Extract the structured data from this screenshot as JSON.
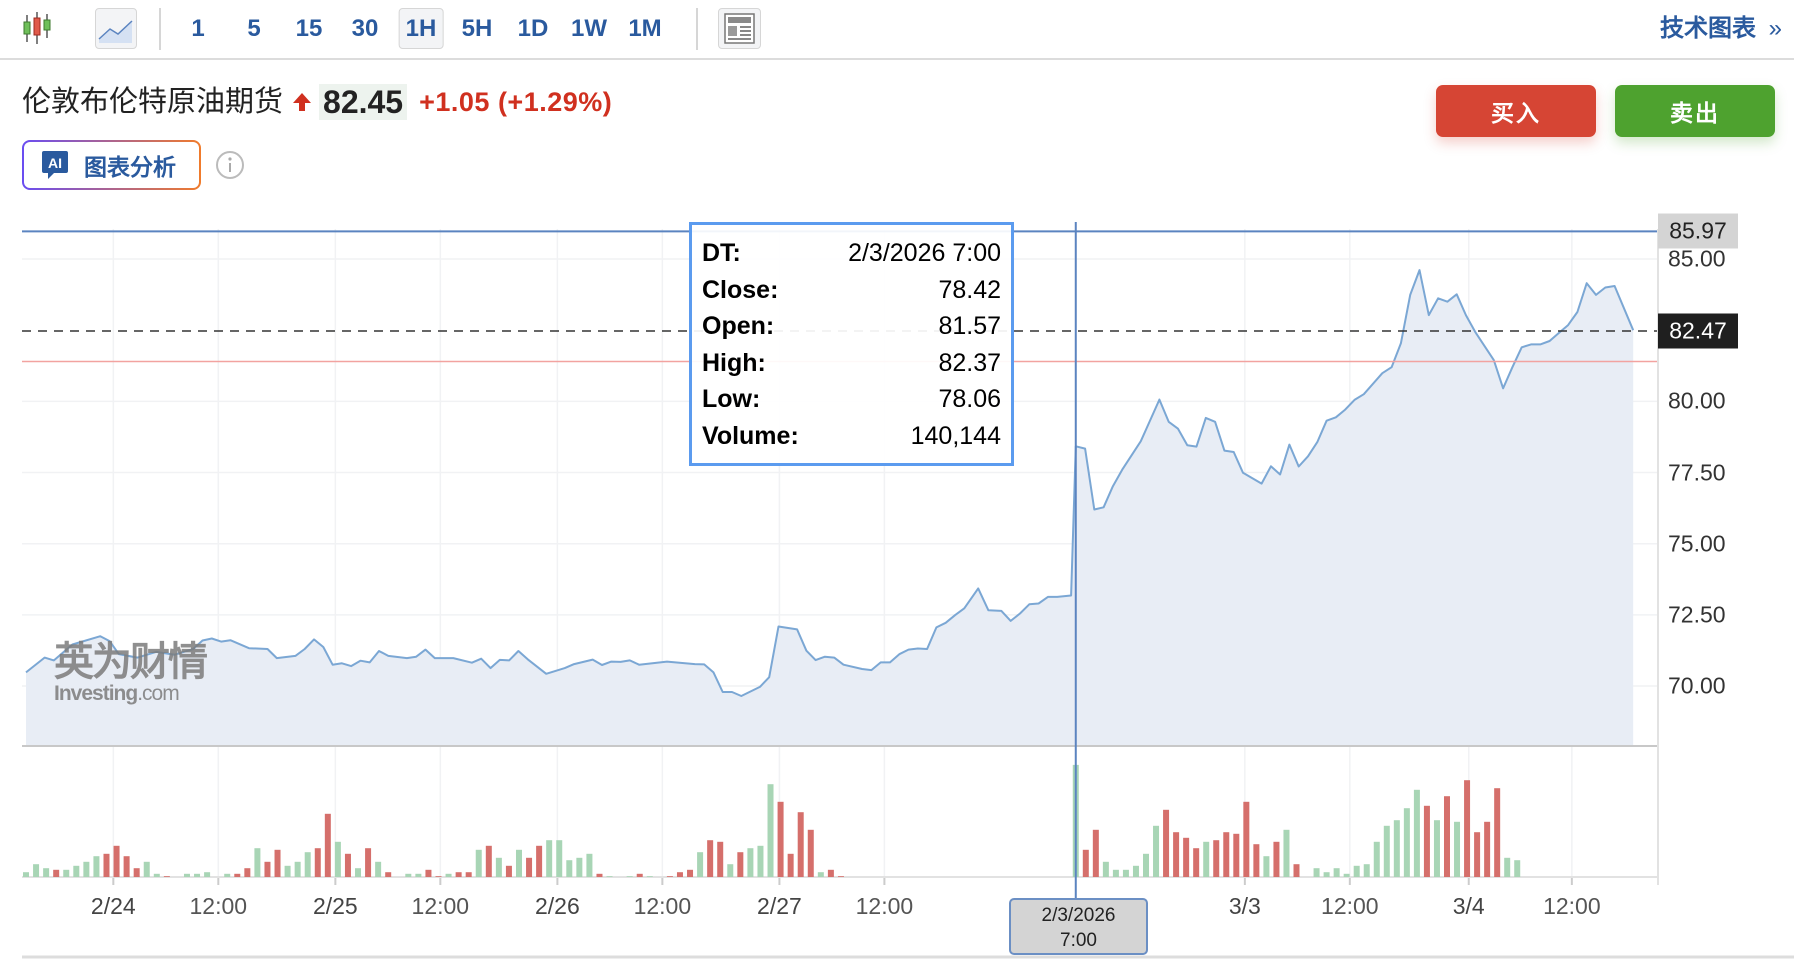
{
  "toolbar": {
    "intervals": [
      "1",
      "5",
      "15",
      "30",
      "1H",
      "5H",
      "1D",
      "1W",
      "1M"
    ],
    "selected_interval": "1H",
    "tech_chart_label": "技术图表",
    "tech_chart_arrow": "»",
    "icons": [
      "candlestick-chart-icon",
      "area-chart-icon",
      "layout-icon"
    ]
  },
  "header": {
    "instrument": "伦敦布伦特原油期货",
    "price": "82.45",
    "change": "+1.05",
    "change_pct": "(+1.29%)",
    "direction": "up"
  },
  "ai_button": {
    "badge": "AI",
    "label": "图表分析"
  },
  "actions": {
    "buy": "买入",
    "sell": "卖出"
  },
  "colors": {
    "accent": "#2a5a9e",
    "up": "#d0301f",
    "buy": "#d64534",
    "sell": "#4ea22f",
    "line": "#7ba7d4",
    "area": "#e8edf5",
    "vol_up": "#a8d5b5",
    "vol_down": "#d56f6b"
  },
  "watermark": {
    "cn": "英为财情",
    "en": "Investing",
    "en_suffix": ".com"
  },
  "tooltip": {
    "rows": [
      {
        "k": "DT:",
        "v": "2/3/2026 7:00"
      },
      {
        "k": "Close:",
        "v": "78.42"
      },
      {
        "k": "Open:",
        "v": "81.57"
      },
      {
        "k": "High:",
        "v": "82.37"
      },
      {
        "k": "Low:",
        "v": "78.06"
      },
      {
        "k": "Volume:",
        "v": "140,144"
      }
    ]
  },
  "crosshair": {
    "date": "2/3/2026",
    "time": "7:00",
    "h": 113
  },
  "chart_data": {
    "type": "area",
    "title": "伦敦布伦特原油期货 1H",
    "y_ticks": [
      "70.00",
      "72.50",
      "75.00",
      "77.50",
      "80.00",
      "85.00"
    ],
    "y_tick_values": [
      70,
      72.5,
      75,
      77.5,
      80,
      85
    ],
    "ylim": [
      67.9,
      86
    ],
    "grid": true,
    "price_tags": [
      {
        "label": "85.97",
        "value": 85.97,
        "kind": "high"
      },
      {
        "label": "82.47",
        "value": 82.47,
        "kind": "last"
      }
    ],
    "prev_close": 81.4,
    "x_ticks": [
      {
        "label": "2/24",
        "h": 9.4,
        "kind": "date"
      },
      {
        "label": "12:00",
        "h": 20.7,
        "kind": "time"
      },
      {
        "label": "2/25",
        "h": 33.3,
        "kind": "date"
      },
      {
        "label": "12:00",
        "h": 44.6,
        "kind": "time"
      },
      {
        "label": "2/26",
        "h": 57.2,
        "kind": "date"
      },
      {
        "label": "12:00",
        "h": 68.5,
        "kind": "time"
      },
      {
        "label": "2/27",
        "h": 81.1,
        "kind": "date"
      },
      {
        "label": "12:00",
        "h": 92.4,
        "kind": "time"
      },
      {
        "label": "3/3",
        "h": 131.2,
        "kind": "date"
      },
      {
        "label": "12:00",
        "h": 142.5,
        "kind": "time"
      },
      {
        "label": "3/4",
        "h": 155.3,
        "kind": "date"
      },
      {
        "label": "12:00",
        "h": 166.4,
        "kind": "time"
      }
    ],
    "series": [
      [
        0,
        70.48
      ],
      [
        2,
        71.0
      ],
      [
        3,
        70.9
      ],
      [
        5,
        71.46
      ],
      [
        8,
        71.75
      ],
      [
        9,
        71.58
      ],
      [
        10,
        71.12
      ],
      [
        12,
        71.0
      ],
      [
        14,
        71.2
      ],
      [
        16,
        71.1
      ],
      [
        18,
        71.3
      ],
      [
        19,
        71.6
      ],
      [
        20,
        71.67
      ],
      [
        21,
        71.56
      ],
      [
        22,
        71.61
      ],
      [
        24,
        71.33
      ],
      [
        26,
        71.3
      ],
      [
        27,
        70.98
      ],
      [
        29,
        71.06
      ],
      [
        30,
        71.3
      ],
      [
        31,
        71.64
      ],
      [
        32,
        71.37
      ],
      [
        33,
        70.75
      ],
      [
        34,
        70.8
      ],
      [
        35,
        70.7
      ],
      [
        36,
        70.89
      ],
      [
        37,
        70.83
      ],
      [
        38,
        71.23
      ],
      [
        39,
        71.06
      ],
      [
        41,
        70.98
      ],
      [
        42,
        71.03
      ],
      [
        43,
        71.28
      ],
      [
        44,
        70.98
      ],
      [
        46,
        70.98
      ],
      [
        48,
        70.82
      ],
      [
        49,
        70.96
      ],
      [
        50,
        70.63
      ],
      [
        51,
        70.92
      ],
      [
        52,
        70.9
      ],
      [
        53,
        71.23
      ],
      [
        54,
        70.94
      ],
      [
        56,
        70.43
      ],
      [
        58,
        70.63
      ],
      [
        59,
        70.77
      ],
      [
        61,
        70.93
      ],
      [
        62,
        70.74
      ],
      [
        63,
        70.86
      ],
      [
        64,
        70.85
      ],
      [
        65,
        70.9
      ],
      [
        66,
        70.75
      ],
      [
        69,
        70.86
      ],
      [
        72,
        70.77
      ],
      [
        73,
        70.76
      ],
      [
        74,
        70.48
      ],
      [
        75,
        69.79
      ],
      [
        76,
        69.79
      ],
      [
        77,
        69.65
      ],
      [
        79,
        69.97
      ],
      [
        80,
        70.31
      ],
      [
        81,
        72.09
      ],
      [
        83,
        71.99
      ],
      [
        84,
        71.24
      ],
      [
        85,
        70.91
      ],
      [
        86,
        71.03
      ],
      [
        87,
        71.0
      ],
      [
        88,
        70.75
      ],
      [
        90,
        70.6
      ],
      [
        91,
        70.56
      ],
      [
        92,
        70.83
      ],
      [
        93,
        70.83
      ],
      [
        94,
        71.12
      ],
      [
        95,
        71.28
      ],
      [
        96,
        71.32
      ],
      [
        97,
        71.3
      ],
      [
        98,
        72.06
      ],
      [
        99,
        72.22
      ],
      [
        100,
        72.49
      ],
      [
        101,
        72.73
      ],
      [
        102.5,
        73.43
      ],
      [
        103.6,
        72.66
      ],
      [
        105,
        72.64
      ],
      [
        106,
        72.29
      ],
      [
        107,
        72.55
      ],
      [
        108,
        72.87
      ],
      [
        109,
        72.9
      ],
      [
        110,
        73.13
      ],
      [
        111,
        73.13
      ],
      [
        112.5,
        73.18
      ],
      [
        113,
        78.42
      ],
      [
        114,
        78.34
      ],
      [
        115,
        76.2
      ],
      [
        116,
        76.28
      ],
      [
        117,
        77.02
      ],
      [
        118,
        77.6
      ],
      [
        119,
        78.1
      ],
      [
        120,
        78.6
      ],
      [
        122,
        80.06
      ],
      [
        123,
        79.28
      ],
      [
        124,
        79.04
      ],
      [
        125,
        78.46
      ],
      [
        126,
        78.41
      ],
      [
        127,
        79.42
      ],
      [
        128,
        79.28
      ],
      [
        129,
        78.27
      ],
      [
        130,
        78.22
      ],
      [
        131,
        77.49
      ],
      [
        133,
        77.11
      ],
      [
        134,
        77.72
      ],
      [
        135,
        77.43
      ],
      [
        136,
        78.48
      ],
      [
        137,
        77.71
      ],
      [
        138,
        78.07
      ],
      [
        139,
        78.57
      ],
      [
        140,
        79.32
      ],
      [
        141,
        79.44
      ],
      [
        142,
        79.71
      ],
      [
        143,
        80.05
      ],
      [
        144,
        80.25
      ],
      [
        146,
        80.99
      ],
      [
        147,
        81.2
      ],
      [
        148,
        82.04
      ],
      [
        149,
        83.74
      ],
      [
        150,
        84.61
      ],
      [
        151,
        83.03
      ],
      [
        152,
        83.62
      ],
      [
        153,
        83.5
      ],
      [
        154,
        83.76
      ],
      [
        155,
        83.03
      ],
      [
        156,
        82.44
      ],
      [
        158,
        81.45
      ],
      [
        159,
        80.46
      ],
      [
        160,
        81.2
      ],
      [
        161,
        81.9
      ],
      [
        162,
        82.0
      ],
      [
        163,
        82.0
      ],
      [
        164,
        82.12
      ],
      [
        165,
        82.4
      ],
      [
        166,
        82.68
      ],
      [
        167,
        83.14
      ],
      [
        168,
        84.15
      ],
      [
        169,
        83.74
      ],
      [
        170,
        84.0
      ],
      [
        171,
        84.05
      ],
      [
        173,
        82.5
      ]
    ],
    "volume_unit": "thousands",
    "volume_max_shown": 160,
    "volume_segments": [
      {
        "start_h": 0,
        "step_h": 1.083,
        "bars": [
          [
            6,
            1
          ],
          [
            16,
            1
          ],
          [
            11,
            1
          ],
          [
            9,
            -1
          ],
          [
            9,
            1
          ],
          [
            14,
            1
          ],
          [
            19,
            1
          ],
          [
            26,
            1
          ],
          [
            29,
            -1
          ],
          [
            39,
            -1
          ],
          [
            26,
            -1
          ],
          [
            11,
            -1
          ],
          [
            19,
            1
          ],
          [
            4,
            1
          ],
          [
            1,
            -1
          ],
          [
            0,
            0
          ],
          [
            4,
            1
          ],
          [
            4,
            1
          ],
          [
            6,
            1
          ],
          [
            0,
            0
          ],
          [
            4,
            1
          ],
          [
            4,
            -1
          ],
          [
            11,
            -1
          ],
          [
            36,
            1
          ],
          [
            19,
            -1
          ],
          [
            34,
            -1
          ],
          [
            14,
            1
          ],
          [
            19,
            1
          ],
          [
            31,
            1
          ],
          [
            36,
            -1
          ],
          [
            79,
            -1
          ],
          [
            44,
            1
          ],
          [
            29,
            -1
          ],
          [
            11,
            1
          ],
          [
            36,
            -1
          ],
          [
            19,
            1
          ],
          [
            6,
            -1
          ],
          [
            0,
            0
          ],
          [
            4,
            1
          ],
          [
            4,
            1
          ],
          [
            9,
            -1
          ],
          [
            1,
            -1
          ],
          [
            4,
            1
          ],
          [
            6,
            -1
          ],
          [
            6,
            -1
          ],
          [
            34,
            1
          ],
          [
            39,
            -1
          ],
          [
            24,
            1
          ],
          [
            14,
            -1
          ],
          [
            34,
            1
          ],
          [
            24,
            -1
          ],
          [
            39,
            -1
          ],
          [
            46,
            1
          ],
          [
            46,
            1
          ],
          [
            21,
            1
          ],
          [
            24,
            1
          ],
          [
            29,
            1
          ],
          [
            4,
            -1
          ],
          [
            1,
            1
          ],
          [
            0,
            0
          ],
          [
            1,
            1
          ],
          [
            4,
            -1
          ],
          [
            1,
            1
          ],
          [
            0,
            0
          ],
          [
            1,
            -1
          ],
          [
            6,
            -1
          ],
          [
            9,
            -1
          ],
          [
            31,
            1
          ],
          [
            46,
            -1
          ],
          [
            44,
            -1
          ],
          [
            16,
            1
          ],
          [
            31,
            -1
          ],
          [
            36,
            1
          ],
          [
            39,
            1
          ],
          [
            116,
            1
          ],
          [
            94,
            -1
          ],
          [
            29,
            -1
          ],
          [
            81,
            -1
          ],
          [
            59,
            -1
          ],
          [
            6,
            1
          ],
          [
            9,
            -1
          ],
          [
            1,
            -1
          ]
        ]
      },
      {
        "start_h": 113,
        "step_h": 1.08,
        "bars": [
          [
            140.144,
            1
          ],
          [
            34,
            -1
          ],
          [
            59,
            -1
          ],
          [
            19,
            1
          ],
          [
            9,
            1
          ],
          [
            9,
            1
          ],
          [
            14,
            1
          ],
          [
            29,
            1
          ],
          [
            64,
            1
          ],
          [
            84,
            -1
          ],
          [
            56,
            -1
          ],
          [
            49,
            -1
          ],
          [
            36,
            -1
          ],
          [
            44,
            1
          ],
          [
            46,
            -1
          ],
          [
            56,
            -1
          ],
          [
            54,
            -1
          ],
          [
            94,
            -1
          ],
          [
            41,
            -1
          ],
          [
            26,
            1
          ],
          [
            44,
            -1
          ],
          [
            59,
            1
          ],
          [
            16,
            -1
          ],
          [
            0,
            0
          ],
          [
            11,
            1
          ],
          [
            6,
            1
          ],
          [
            11,
            1
          ],
          [
            4,
            1
          ],
          [
            14,
            1
          ],
          [
            16,
            1
          ],
          [
            44,
            1
          ],
          [
            64,
            1
          ],
          [
            71,
            1
          ],
          [
            86,
            1
          ],
          [
            109,
            1
          ],
          [
            89,
            -1
          ],
          [
            71,
            1
          ],
          [
            101,
            -1
          ],
          [
            69,
            1
          ],
          [
            121,
            -1
          ],
          [
            56,
            -1
          ],
          [
            69,
            -1
          ],
          [
            111,
            -1
          ],
          [
            24,
            1
          ],
          [
            21,
            1
          ]
        ]
      }
    ]
  }
}
